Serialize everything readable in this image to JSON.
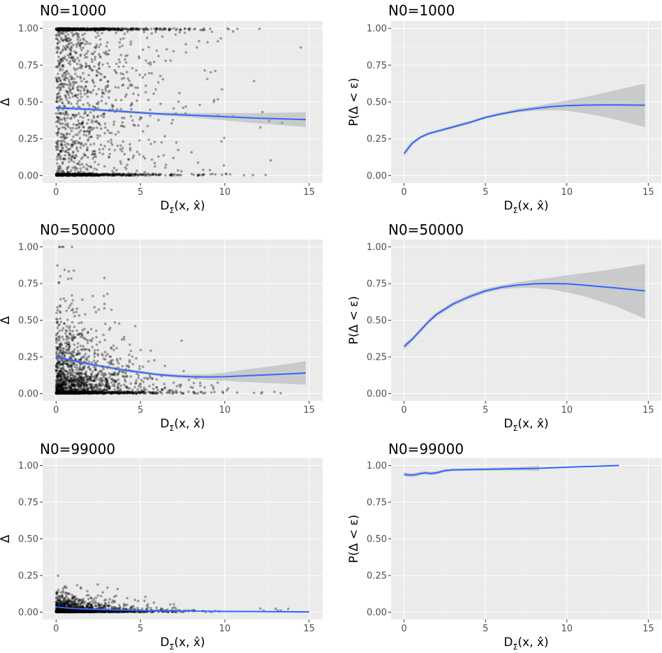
{
  "chart_data": [
    {
      "id": "scatter-n1000",
      "type": "scatter",
      "title": "N0=1000",
      "xlabel": "D Σ̂ (x, x̂)",
      "ylabel": "Δ",
      "xlim": [
        -0.8,
        15.8
      ],
      "ylim": [
        -0.05,
        1.05
      ],
      "x_ticks": [
        "0",
        "5",
        "10",
        "15"
      ],
      "y_ticks": [
        "0.00",
        "0.25",
        "0.50",
        "0.75",
        "1.00"
      ],
      "grid": true,
      "points_summary": {
        "density": "high",
        "x_decay": 0.45,
        "y_ones_frac": 0.25,
        "y_zeros_frac": 0.3,
        "y_center": 0.45,
        "n": 2200
      },
      "series": [
        {
          "type": "smooth",
          "x": [
            0,
            2,
            4,
            6,
            8,
            10,
            12,
            14.8
          ],
          "y": [
            0.46,
            0.45,
            0.435,
            0.42,
            0.41,
            0.4,
            0.39,
            0.38
          ]
        },
        {
          "type": "ci",
          "x": [
            0,
            2,
            4,
            6,
            8,
            10,
            12,
            14.8
          ],
          "lower": [
            0.45,
            0.44,
            0.425,
            0.41,
            0.395,
            0.375,
            0.355,
            0.33
          ],
          "upper": [
            0.47,
            0.46,
            0.445,
            0.43,
            0.425,
            0.425,
            0.425,
            0.43
          ]
        }
      ]
    },
    {
      "id": "prob-n1000",
      "type": "line",
      "title": "N0=1000",
      "xlabel": "D Σ̂ (x, x̂)",
      "ylabel": "P(Δ < ε)",
      "xlim": [
        -0.8,
        15.8
      ],
      "ylim": [
        -0.05,
        1.05
      ],
      "x_ticks": [
        "0",
        "5",
        "10",
        "15"
      ],
      "y_ticks": [
        "0.00",
        "0.25",
        "0.50",
        "0.75",
        "1.00"
      ],
      "grid": true,
      "series": [
        {
          "type": "smooth",
          "x": [
            0,
            0.5,
            1,
            1.5,
            2,
            3,
            4,
            5,
            6,
            7,
            8,
            9,
            10,
            11,
            12,
            13,
            14.8
          ],
          "y": [
            0.15,
            0.22,
            0.26,
            0.285,
            0.3,
            0.33,
            0.36,
            0.395,
            0.42,
            0.44,
            0.455,
            0.468,
            0.475,
            0.478,
            0.48,
            0.48,
            0.478
          ]
        },
        {
          "type": "ci",
          "x": [
            0,
            0.5,
            1,
            1.5,
            2,
            3,
            4,
            5,
            6,
            7,
            8,
            9,
            10,
            11,
            12,
            13,
            14.8
          ],
          "lower": [
            0.13,
            0.205,
            0.25,
            0.275,
            0.29,
            0.32,
            0.35,
            0.385,
            0.41,
            0.43,
            0.44,
            0.445,
            0.44,
            0.425,
            0.405,
            0.38,
            0.33
          ],
          "upper": [
            0.17,
            0.235,
            0.27,
            0.295,
            0.31,
            0.34,
            0.37,
            0.405,
            0.43,
            0.455,
            0.47,
            0.49,
            0.51,
            0.53,
            0.555,
            0.58,
            0.625
          ]
        }
      ]
    },
    {
      "id": "scatter-n50000",
      "type": "scatter",
      "title": "N0=50000",
      "xlabel": "D Σ̂ (x, x̂)",
      "ylabel": "Δ",
      "xlim": [
        -0.8,
        15.8
      ],
      "ylim": [
        -0.05,
        1.05
      ],
      "x_ticks": [
        "0",
        "5",
        "10",
        "15"
      ],
      "y_ticks": [
        "0.00",
        "0.25",
        "0.50",
        "0.75",
        "1.00"
      ],
      "grid": true,
      "points_summary": {
        "density": "high",
        "x_decay": 0.55,
        "y_ones_frac": 0.0,
        "y_zeros_frac": 0.35,
        "y_center": 0.18,
        "n": 2000
      },
      "series": [
        {
          "type": "smooth",
          "x": [
            0,
            1,
            2,
            3,
            4,
            5,
            6,
            7,
            8,
            9,
            10,
            11,
            12,
            13,
            14.8
          ],
          "y": [
            0.25,
            0.225,
            0.2,
            0.18,
            0.16,
            0.145,
            0.13,
            0.12,
            0.115,
            0.113,
            0.115,
            0.12,
            0.125,
            0.13,
            0.14
          ]
        },
        {
          "type": "ci",
          "x": [
            0,
            1,
            2,
            3,
            4,
            5,
            6,
            7,
            8,
            9,
            10,
            11,
            12,
            13,
            14.8
          ],
          "lower": [
            0.24,
            0.215,
            0.19,
            0.17,
            0.15,
            0.135,
            0.12,
            0.108,
            0.1,
            0.093,
            0.088,
            0.08,
            0.075,
            0.07,
            0.06
          ],
          "upper": [
            0.26,
            0.235,
            0.21,
            0.19,
            0.17,
            0.155,
            0.14,
            0.132,
            0.13,
            0.133,
            0.142,
            0.16,
            0.175,
            0.19,
            0.22
          ]
        }
      ]
    },
    {
      "id": "prob-n50000",
      "type": "line",
      "title": "N0=50000",
      "xlabel": "D Σ̂ (x, x̂)",
      "ylabel": "P(Δ < ε)",
      "xlim": [
        -0.8,
        15.8
      ],
      "ylim": [
        -0.05,
        1.05
      ],
      "x_ticks": [
        "0",
        "5",
        "10",
        "15"
      ],
      "y_ticks": [
        "0.00",
        "0.25",
        "0.50",
        "0.75",
        "1.00"
      ],
      "grid": true,
      "series": [
        {
          "type": "smooth",
          "x": [
            0,
            0.5,
            1,
            1.5,
            2,
            3,
            4,
            5,
            6,
            7,
            8,
            9,
            10,
            11,
            12,
            13,
            14.8
          ],
          "y": [
            0.32,
            0.37,
            0.43,
            0.49,
            0.54,
            0.61,
            0.66,
            0.7,
            0.725,
            0.74,
            0.748,
            0.75,
            0.748,
            0.74,
            0.73,
            0.72,
            0.7
          ]
        },
        {
          "type": "ci",
          "x": [
            0,
            0.5,
            1,
            1.5,
            2,
            3,
            4,
            5,
            6,
            7,
            8,
            9,
            10,
            11,
            12,
            13,
            14.8
          ],
          "lower": [
            0.3,
            0.355,
            0.415,
            0.475,
            0.525,
            0.595,
            0.645,
            0.685,
            0.71,
            0.72,
            0.72,
            0.71,
            0.69,
            0.665,
            0.63,
            0.595,
            0.51
          ],
          "upper": [
            0.34,
            0.385,
            0.445,
            0.505,
            0.555,
            0.625,
            0.675,
            0.715,
            0.74,
            0.76,
            0.776,
            0.79,
            0.806,
            0.82,
            0.835,
            0.85,
            0.885
          ]
        }
      ]
    },
    {
      "id": "scatter-n99000",
      "type": "scatter",
      "title": "N0=99000",
      "xlabel": "D Σ̂ (x, x̂)",
      "ylabel": "Δ",
      "xlim": [
        -0.8,
        15.8
      ],
      "ylim": [
        -0.05,
        1.05
      ],
      "x_ticks": [
        "0",
        "5",
        "10",
        "15"
      ],
      "y_ticks": [
        "0.00",
        "0.25",
        "0.50",
        "0.75",
        "1.00"
      ],
      "grid": true,
      "points_summary": {
        "density": "high",
        "x_decay": 0.55,
        "y_ones_frac": 0.0,
        "y_zeros_frac": 0.5,
        "y_center": 0.04,
        "n": 1800
      },
      "series": [
        {
          "type": "smooth",
          "x": [
            0,
            0.5,
            1,
            2,
            3,
            4,
            5,
            6,
            8,
            10,
            12,
            15
          ],
          "y": [
            0.035,
            0.03,
            0.025,
            0.02,
            0.016,
            0.013,
            0.011,
            0.009,
            0.007,
            0.005,
            0.004,
            0.002
          ]
        },
        {
          "type": "ci",
          "x": [
            0,
            0.5,
            1,
            2,
            3,
            4,
            5,
            6,
            8,
            10,
            12,
            15
          ],
          "lower": [
            0.032,
            0.027,
            0.022,
            0.017,
            0.013,
            0.01,
            0.008,
            0.006,
            0.004,
            0.002,
            0.0,
            -0.004
          ],
          "upper": [
            0.038,
            0.033,
            0.028,
            0.023,
            0.019,
            0.016,
            0.014,
            0.012,
            0.01,
            0.008,
            0.008,
            0.008
          ]
        }
      ]
    },
    {
      "id": "prob-n99000",
      "type": "line",
      "title": "N0=99000",
      "xlabel": "D Σ̂ (x, x̂)",
      "ylabel": "P(Δ < ε)",
      "xlim": [
        -0.8,
        15.8
      ],
      "ylim": [
        -0.05,
        1.05
      ],
      "x_ticks": [
        "0",
        "5",
        "10",
        "15"
      ],
      "y_ticks": [
        "0.00",
        "0.25",
        "0.50",
        "0.75",
        "1.00"
      ],
      "grid": true,
      "series": [
        {
          "type": "smooth",
          "x": [
            0,
            0.3,
            0.6,
            1,
            1.3,
            1.6,
            2,
            2.5,
            3,
            4,
            5,
            6,
            7,
            8,
            9,
            10,
            11,
            12,
            13.2
          ],
          "y": [
            0.94,
            0.935,
            0.935,
            0.945,
            0.95,
            0.945,
            0.95,
            0.965,
            0.97,
            0.972,
            0.974,
            0.976,
            0.978,
            0.98,
            0.984,
            0.988,
            0.992,
            0.995,
            1.0
          ]
        },
        {
          "type": "ci",
          "x": [
            0,
            0.3,
            0.6,
            1,
            1.3,
            1.6,
            2,
            2.5,
            3,
            4,
            5,
            6,
            7,
            8,
            8.3
          ],
          "lower": [
            0.925,
            0.922,
            0.922,
            0.933,
            0.938,
            0.933,
            0.938,
            0.955,
            0.962,
            0.964,
            0.965,
            0.966,
            0.966,
            0.964,
            0.962
          ],
          "upper": [
            0.955,
            0.948,
            0.948,
            0.957,
            0.962,
            0.957,
            0.962,
            0.975,
            0.978,
            0.98,
            0.983,
            0.986,
            0.99,
            0.996,
            1.0
          ]
        }
      ]
    }
  ]
}
